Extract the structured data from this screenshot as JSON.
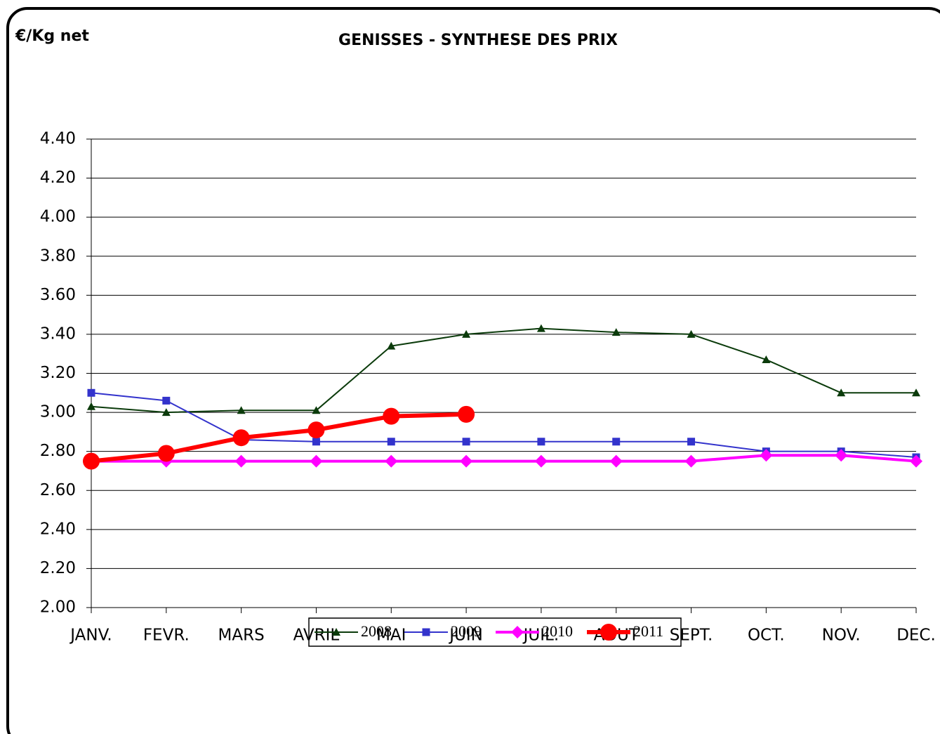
{
  "chart_data": {
    "type": "line",
    "title": "GENISSES - SYNTHESE DES PRIX",
    "y_label": "€/Kg net",
    "categories": [
      "JANV.",
      "FEVR.",
      "MARS",
      "AVRIL",
      "MAI",
      "JUIN",
      "JUIL.",
      "AOUT",
      "SEPT.",
      "OCT.",
      "NOV.",
      "DEC."
    ],
    "series": [
      {
        "name": "2008",
        "color": "#0b3b0b",
        "marker": "triangle",
        "values": [
          3.03,
          3.0,
          3.01,
          3.01,
          3.34,
          3.4,
          3.43,
          3.41,
          3.4,
          3.27,
          3.1,
          3.1
        ]
      },
      {
        "name": "2009",
        "color": "#3333cc",
        "marker": "square",
        "values": [
          3.1,
          3.06,
          2.86,
          2.85,
          2.85,
          2.85,
          2.85,
          2.85,
          2.85,
          2.8,
          2.8,
          2.77
        ]
      },
      {
        "name": "2010",
        "color": "#ff00ff",
        "marker": "diamond",
        "values": [
          2.75,
          2.75,
          2.75,
          2.75,
          2.75,
          2.75,
          2.75,
          2.75,
          2.75,
          2.78,
          2.78,
          2.75
        ]
      },
      {
        "name": "2011",
        "color": "#ff0000",
        "marker": "circle",
        "values": [
          2.75,
          2.79,
          2.87,
          2.91,
          2.98,
          2.99,
          null,
          null,
          null,
          null,
          null,
          null
        ]
      }
    ],
    "ylim": [
      2.0,
      4.4
    ],
    "yticks": [
      {
        "value": 2.0,
        "label": "2.00"
      },
      {
        "value": 2.2,
        "label": "2.20"
      },
      {
        "value": 2.4,
        "label": "2.40"
      },
      {
        "value": 2.6,
        "label": "2.60"
      },
      {
        "value": 2.8,
        "label": "2.80"
      },
      {
        "value": 3.0,
        "label": "3.00"
      },
      {
        "value": 3.2,
        "label": "3.20"
      },
      {
        "value": 3.4,
        "label": "3.40"
      },
      {
        "value": 3.6,
        "label": "3.60"
      },
      {
        "value": 3.8,
        "label": "3.80"
      },
      {
        "value": 4.0,
        "label": "4.00"
      },
      {
        "value": 4.2,
        "label": "4.20"
      },
      {
        "value": 4.4,
        "label": "4.40"
      }
    ],
    "grid": true,
    "legend": "bottom"
  }
}
